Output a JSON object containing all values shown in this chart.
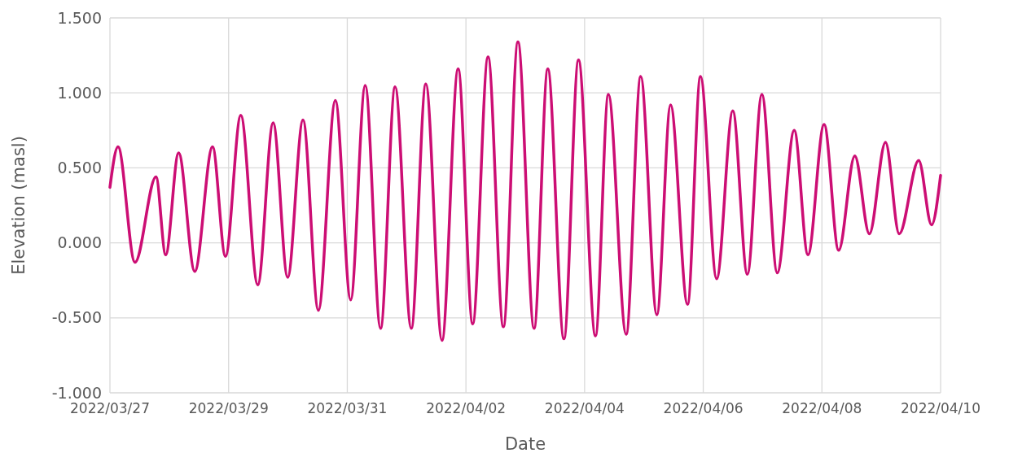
{
  "chart_data": {
    "type": "line",
    "xlabel": "Date",
    "ylabel": "Elevation (masl)",
    "x": [
      "2022-03-27T00:00",
      "2022-03-27T03:16",
      "2022-03-27T10:08",
      "2022-03-27T18:38",
      "2022-03-27T22:33",
      "2022-03-28T03:47",
      "2022-03-28T10:19",
      "2022-03-28T17:30",
      "2022-03-28T22:44",
      "2022-03-29T04:56",
      "2022-03-29T11:48",
      "2022-03-29T18:01",
      "2022-03-29T23:54",
      "2022-03-30T06:06",
      "2022-03-30T12:19",
      "2022-03-30T19:11",
      "2022-03-31T01:23",
      "2022-03-31T07:16",
      "2022-03-31T13:28",
      "2022-03-31T19:21",
      "2022-04-01T01:54",
      "2022-04-01T07:47",
      "2022-04-01T14:19",
      "2022-04-01T20:51",
      "2022-04-02T02:44",
      "2022-04-02T08:57",
      "2022-04-02T15:09",
      "2022-04-02T21:02",
      "2022-04-03T03:34",
      "2022-04-03T09:07",
      "2022-04-03T15:39",
      "2022-04-03T21:32",
      "2022-04-04T04:24",
      "2022-04-04T09:38",
      "2022-04-04T16:49",
      "2022-04-04T22:42",
      "2022-04-05T05:14",
      "2022-04-05T10:47",
      "2022-04-05T17:39",
      "2022-04-05T22:53",
      "2022-04-06T05:25",
      "2022-04-06T11:57",
      "2022-04-06T17:50",
      "2022-04-06T23:43",
      "2022-04-07T05:56",
      "2022-04-07T12:48",
      "2022-04-07T18:21",
      "2022-04-08T00:53",
      "2022-04-08T06:46",
      "2022-04-08T13:18",
      "2022-04-08T19:11",
      "2022-04-09T01:43",
      "2022-04-09T07:16",
      "2022-04-09T15:08",
      "2022-04-09T20:21",
      "2022-04-10T00:00"
    ],
    "series": [
      {
        "color": "#cc0e74",
        "values": [
          0.37,
          0.64,
          -0.13,
          0.44,
          -0.08,
          0.6,
          -0.19,
          0.64,
          -0.09,
          0.85,
          -0.28,
          0.8,
          -0.23,
          0.82,
          -0.45,
          0.95,
          -0.38,
          1.05,
          -0.57,
          1.04,
          -0.57,
          1.06,
          -0.65,
          1.16,
          -0.54,
          1.24,
          -0.56,
          1.34,
          -0.57,
          1.16,
          -0.64,
          1.22,
          -0.62,
          0.99,
          -0.61,
          1.11,
          -0.48,
          0.92,
          -0.41,
          1.11,
          -0.24,
          0.88,
          -0.21,
          0.99,
          -0.2,
          0.75,
          -0.08,
          0.79,
          -0.05,
          0.58,
          0.06,
          0.67,
          0.06,
          0.55,
          0.12,
          0.45
        ]
      }
    ],
    "xlim": [
      "2022-03-27",
      "2022-04-10"
    ],
    "xticks": [
      {
        "value": "2022-03-27",
        "label": "2022/03/27"
      },
      {
        "value": "2022-03-29",
        "label": "2022/03/29"
      },
      {
        "value": "2022-03-31",
        "label": "2022/03/31"
      },
      {
        "value": "2022-04-02",
        "label": "2022/04/02"
      },
      {
        "value": "2022-04-04",
        "label": "2022/04/04"
      },
      {
        "value": "2022-04-06",
        "label": "2022/04/06"
      },
      {
        "value": "2022-04-08",
        "label": "2022/04/08"
      },
      {
        "value": "2022-04-10",
        "label": "2022/04/10"
      }
    ],
    "ylim": [
      -1,
      1.5
    ],
    "yticks": [
      {
        "value": -1,
        "label": "-1.000"
      },
      {
        "value": -0.5,
        "label": "-0.500"
      },
      {
        "value": 0,
        "label": "0.000"
      },
      {
        "value": 0.5,
        "label": "0.500"
      },
      {
        "value": 1,
        "label": "1.000"
      },
      {
        "value": 1.5,
        "label": "1.500"
      }
    ],
    "grid": true,
    "marker": "none",
    "line_style": "solid"
  }
}
